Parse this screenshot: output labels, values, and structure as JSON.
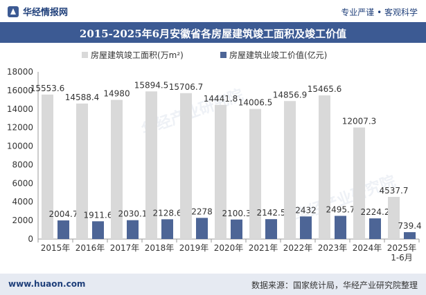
{
  "header": {
    "brand": "华经情报网",
    "slogan": "专业严谨 • 客观科学"
  },
  "title": "2015-2025年6月安徽省各房屋建筑竣工面积及竣工价值",
  "footer": {
    "url": "www.huaon.com",
    "source": "数据来源：国家统计局，华经产业研究院整理"
  },
  "watermark": "华经产业研究院",
  "chart_data": {
    "type": "bar",
    "categories": [
      "2015年",
      "2016年",
      "2017年",
      "2018年",
      "2019年",
      "2020年",
      "2021年",
      "2022年",
      "2023年",
      "2024年",
      "2025年\n1-6月"
    ],
    "series": [
      {
        "name": "房屋建筑竣工面积(万m²)",
        "color": "#d9d9d9",
        "values": [
          15553.6,
          14588.4,
          14980,
          15894.5,
          15706.7,
          14441.8,
          14006.5,
          14856.9,
          15465.6,
          12007.3,
          4537.7
        ]
      },
      {
        "name": "房屋建筑业竣工价值(亿元)",
        "color": "#4d6596",
        "values": [
          2004.7,
          1911.6,
          2030.1,
          2128.6,
          2278,
          2100.3,
          2142.5,
          2432,
          2495.7,
          2224.2,
          739.4
        ]
      }
    ],
    "ylim": [
      0,
      18000
    ],
    "yticks": [
      0,
      2000,
      4000,
      6000,
      8000,
      10000,
      12000,
      14000,
      16000,
      18000
    ],
    "legend_position": "top",
    "grid": false
  }
}
